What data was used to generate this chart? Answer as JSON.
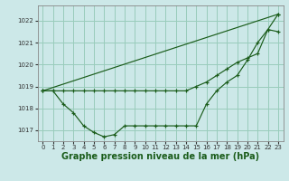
{
  "background_color": "#cce8e8",
  "plot_bg_color": "#cce8e8",
  "grid_color": "#99ccbb",
  "line_color": "#1a5c1a",
  "xlabel": "Graphe pression niveau de la mer (hPa)",
  "xlabel_fontsize": 7,
  "ylim": [
    1016.5,
    1022.7
  ],
  "xlim": [
    -0.5,
    23.5
  ],
  "yticks": [
    1017,
    1018,
    1019,
    1020,
    1021,
    1022
  ],
  "xticks": [
    0,
    1,
    2,
    3,
    4,
    5,
    6,
    7,
    8,
    9,
    10,
    11,
    12,
    13,
    14,
    15,
    16,
    17,
    18,
    19,
    20,
    21,
    22,
    23
  ],
  "series1_x": [
    0,
    1,
    2,
    3,
    4,
    5,
    6,
    7,
    8,
    9,
    10,
    11,
    12,
    13,
    14,
    15,
    16,
    17,
    18,
    19,
    20,
    21,
    22,
    23
  ],
  "series1_y": [
    1018.8,
    1018.8,
    1018.2,
    1017.8,
    1017.2,
    1016.9,
    1016.7,
    1016.8,
    1017.2,
    1017.2,
    1017.2,
    1017.2,
    1017.2,
    1017.2,
    1017.2,
    1017.2,
    1018.2,
    1018.8,
    1019.2,
    1019.5,
    1020.2,
    1021.0,
    1021.6,
    1022.3
  ],
  "series2_x": [
    0,
    1,
    2,
    3,
    4,
    5,
    6,
    7,
    8,
    9,
    10,
    11,
    12,
    13,
    14,
    15,
    16,
    17,
    18,
    19,
    20,
    21,
    22,
    23
  ],
  "series2_y": [
    1018.8,
    1018.8,
    1018.8,
    1018.8,
    1018.8,
    1018.8,
    1018.8,
    1018.8,
    1018.8,
    1018.8,
    1018.8,
    1018.8,
    1018.8,
    1018.8,
    1018.8,
    1019.0,
    1019.2,
    1019.5,
    1019.8,
    1020.1,
    1020.3,
    1020.5,
    1021.6,
    1021.5
  ],
  "series3_x": [
    0,
    23
  ],
  "series3_y": [
    1018.8,
    1022.3
  ]
}
